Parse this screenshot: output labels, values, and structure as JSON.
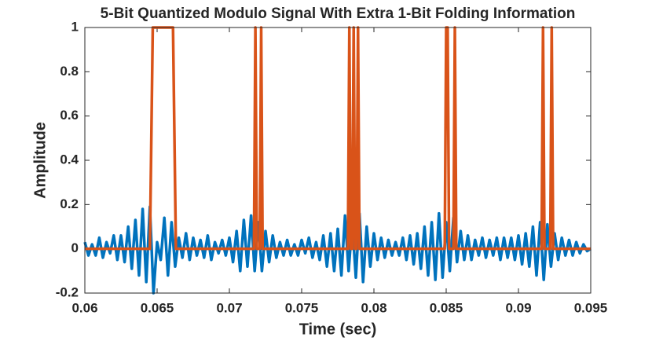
{
  "chart_data": {
    "type": "line",
    "title": "5-Bit Quantized Modulo Signal With Extra 1-Bit Folding Information",
    "x_label": "Time (sec)",
    "y_label": "Amplitude",
    "xlim": [
      0.06,
      0.095
    ],
    "ylim": [
      -0.2,
      1
    ],
    "xticks": [
      0.06,
      0.065,
      0.07,
      0.075,
      0.08,
      0.085,
      0.09,
      0.095
    ],
    "yticks": [
      -0.2,
      0,
      0.2,
      0.4,
      0.6,
      0.8,
      1
    ],
    "series": [
      {
        "color": "#0072bd",
        "x": [
          0.06,
          0.06025,
          0.0605,
          0.06075,
          0.061,
          0.06125,
          0.0615,
          0.06175,
          0.062,
          0.06225,
          0.0625,
          0.06275,
          0.063,
          0.06325,
          0.0635,
          0.06375,
          0.064,
          0.06425,
          0.0645,
          0.06475,
          0.065,
          0.06525,
          0.0655,
          0.06575,
          0.066,
          0.06625,
          0.0665,
          0.06675,
          0.067,
          0.06725,
          0.0675,
          0.06775,
          0.068,
          0.06825,
          0.0685,
          0.06875,
          0.069,
          0.06925,
          0.0695,
          0.06975,
          0.07,
          0.07025,
          0.0705,
          0.07075,
          0.071,
          0.07125,
          0.0715,
          0.07175,
          0.072,
          0.07225,
          0.0725,
          0.07275,
          0.073,
          0.07325,
          0.0735,
          0.07375,
          0.074,
          0.07425,
          0.0745,
          0.07475,
          0.075,
          0.07525,
          0.0755,
          0.07575,
          0.076,
          0.07625,
          0.0765,
          0.07675,
          0.077,
          0.07725,
          0.0775,
          0.07775,
          0.078,
          0.07825,
          0.0785,
          0.07875,
          0.079,
          0.07925,
          0.0795,
          0.07975,
          0.08,
          0.08025,
          0.0805,
          0.08075,
          0.081,
          0.08125,
          0.0815,
          0.08175,
          0.082,
          0.08225,
          0.0825,
          0.08275,
          0.083,
          0.08325,
          0.0835,
          0.08375,
          0.084,
          0.08425,
          0.0845,
          0.08475,
          0.085,
          0.08525,
          0.0855,
          0.08575,
          0.086,
          0.08625,
          0.0865,
          0.08675,
          0.087,
          0.08725,
          0.0875,
          0.08775,
          0.088,
          0.08825,
          0.0885,
          0.08875,
          0.089,
          0.08925,
          0.0895,
          0.08975,
          0.09,
          0.09025,
          0.0905,
          0.09075,
          0.091,
          0.09125,
          0.0915,
          0.09175,
          0.092,
          0.09225,
          0.0925,
          0.09275,
          0.093,
          0.09325,
          0.0935,
          0.09375,
          0.094,
          0.09425,
          0.0945,
          0.09475,
          0.095
        ],
        "values": [
          0.03,
          -0.03,
          0.02,
          -0.03,
          0.05,
          -0.04,
          0.03,
          -0.02,
          0.06,
          -0.05,
          0.06,
          -0.06,
          0.1,
          -0.09,
          0.13,
          -0.12,
          0.18,
          -0.15,
          0.19,
          -0.2,
          0.03,
          -0.05,
          0.14,
          -0.12,
          0.12,
          -0.08,
          0.05,
          -0.04,
          0.07,
          -0.05,
          0.05,
          -0.03,
          0.04,
          -0.04,
          0.06,
          -0.05,
          0.03,
          -0.02,
          0.04,
          -0.03,
          0.05,
          -0.06,
          0.08,
          -0.1,
          0.13,
          -0.08,
          0.15,
          -0.1,
          0.12,
          -0.1,
          0.08,
          -0.06,
          0.06,
          -0.04,
          0.03,
          -0.03,
          0.04,
          -0.03,
          0.02,
          -0.03,
          0.04,
          -0.02,
          0.05,
          -0.04,
          0.03,
          -0.05,
          0.06,
          -0.08,
          0.07,
          -0.1,
          0.09,
          -0.12,
          0.15,
          -0.1,
          0.12,
          -0.13,
          0.16,
          -0.15,
          0.1,
          -0.08,
          0.07,
          -0.05,
          0.05,
          -0.04,
          0.04,
          -0.03,
          0.03,
          -0.03,
          0.05,
          -0.05,
          0.06,
          -0.07,
          0.07,
          -0.09,
          0.1,
          -0.12,
          0.12,
          -0.14,
          0.16,
          -0.13,
          0.12,
          -0.1,
          0.14,
          -0.06,
          0.08,
          -0.05,
          0.06,
          -0.05,
          0.04,
          -0.03,
          0.05,
          -0.04,
          0.04,
          -0.03,
          0.05,
          -0.05,
          0.05,
          -0.04,
          0.05,
          -0.05,
          0.06,
          -0.07,
          0.07,
          -0.08,
          0.1,
          -0.12,
          0.12,
          -0.14,
          0.11,
          -0.08,
          0.07,
          -0.05,
          0.05,
          -0.03,
          0.04,
          -0.03,
          0.03,
          -0.02,
          0.02,
          -0.01,
          0
        ]
      },
      {
        "color": "#d95319",
        "x": [
          0.06,
          0.0645,
          0.0647,
          0.0661,
          0.0663,
          0.0717,
          0.0718,
          0.0719,
          0.0721,
          0.0722,
          0.0723,
          0.0782,
          0.0783,
          0.0784,
          0.0785,
          0.0786,
          0.0787,
          0.0788,
          0.0789,
          0.079,
          0.0849,
          0.085,
          0.0851,
          0.0852,
          0.0855,
          0.0856,
          0.0857,
          0.0916,
          0.0917,
          0.0918,
          0.0922,
          0.0923,
          0.0924,
          0.095
        ],
        "values": [
          0,
          0,
          1,
          1,
          0,
          0,
          1,
          0,
          0,
          1,
          0,
          0,
          1,
          0,
          0,
          1,
          0,
          0,
          1,
          0,
          0,
          1,
          1,
          0,
          0,
          1,
          0,
          0,
          1,
          0,
          0,
          1,
          0,
          0
        ]
      }
    ]
  }
}
